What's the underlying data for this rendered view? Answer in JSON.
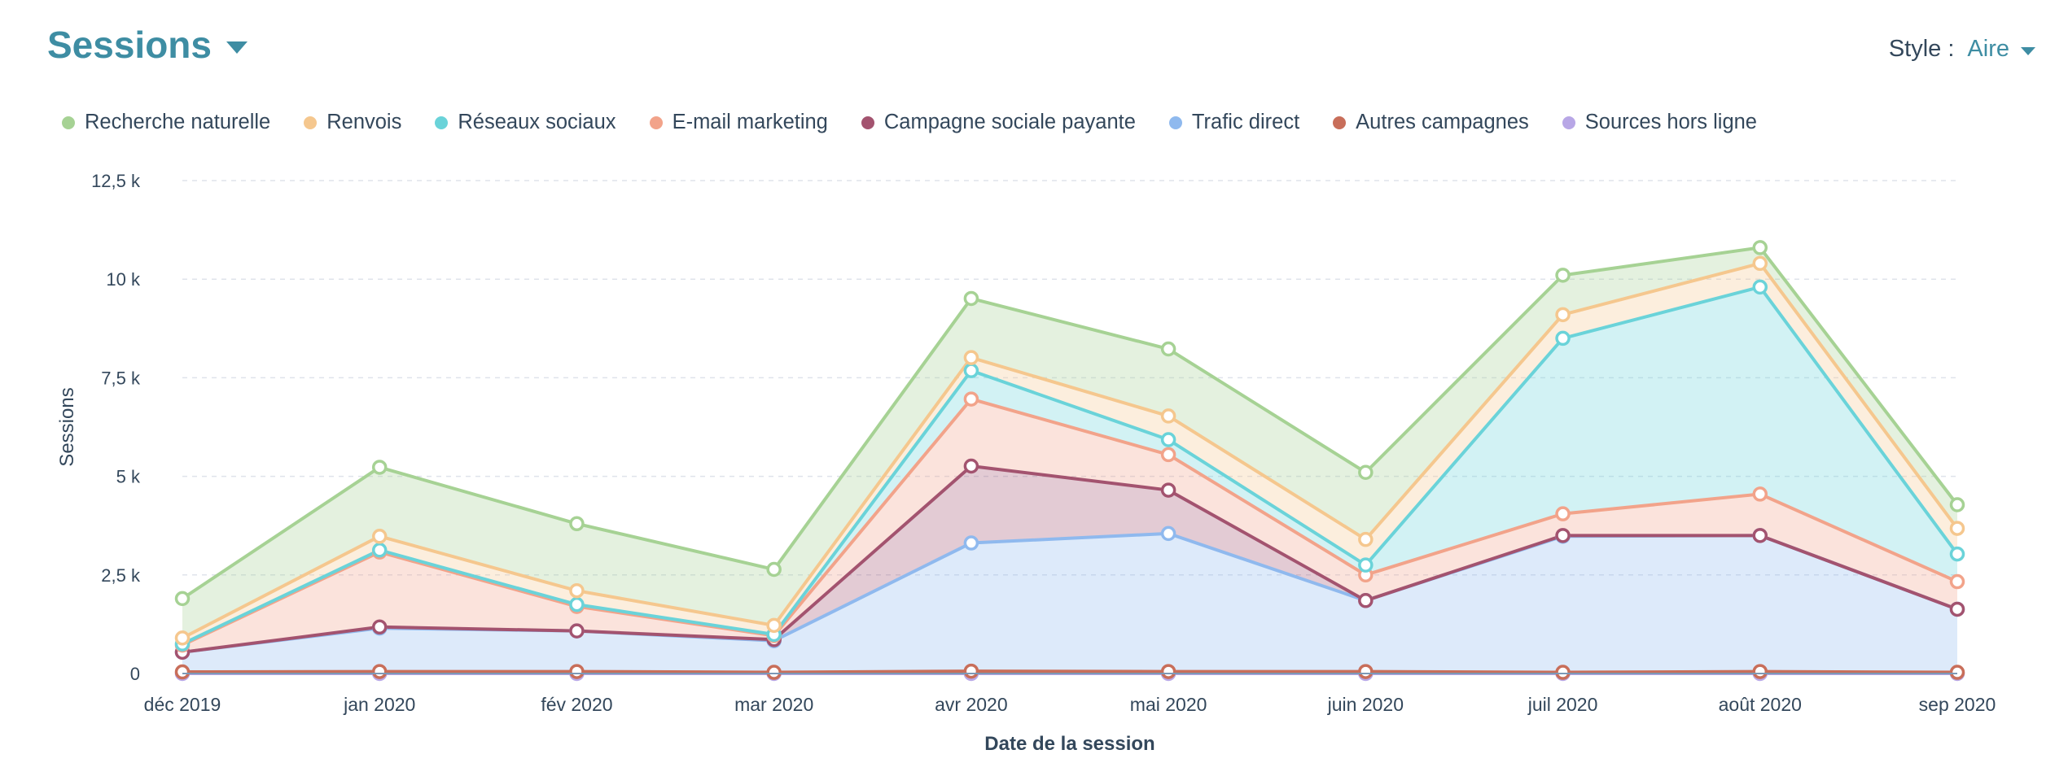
{
  "header": {
    "title": "Sessions"
  },
  "style_selector": {
    "label": "Style :",
    "value": "Aire"
  },
  "chart_data": {
    "type": "area",
    "stacked": true,
    "title": "Sessions",
    "xlabel": "Date de la session",
    "ylabel": "Sessions",
    "x": [
      "déc 2019",
      "jan 2020",
      "fév 2020",
      "mar 2020",
      "avr 2020",
      "mai 2020",
      "juin 2020",
      "juil 2020",
      "août 2020",
      "sep 2020"
    ],
    "y_ticks": [
      {
        "value": 0,
        "label": "0"
      },
      {
        "value": 2500,
        "label": "2,5 k"
      },
      {
        "value": 5000,
        "label": "5 k"
      },
      {
        "value": 7500,
        "label": "7,5 k"
      },
      {
        "value": 10000,
        "label": "10 k"
      },
      {
        "value": 12500,
        "label": "12,5 k"
      }
    ],
    "ylim": [
      0,
      12500
    ],
    "grid": true,
    "legend_position": "top-left",
    "series": [
      {
        "name": "Recherche naturelle",
        "color": "#a6d294",
        "values": [
          1000,
          1750,
          1700,
          1420,
          1500,
          1700,
          1700,
          1000,
          400,
          600
        ]
      },
      {
        "name": "Renvois",
        "color": "#f5c78e",
        "values": [
          150,
          350,
          350,
          230,
          330,
          600,
          650,
          600,
          600,
          650
        ]
      },
      {
        "name": "Réseaux sociaux",
        "color": "#6ad3d9",
        "values": [
          30,
          50,
          50,
          30,
          720,
          380,
          250,
          4450,
          5250,
          700
        ]
      },
      {
        "name": "E-mail marketing",
        "color": "#f2a38a",
        "values": [
          180,
          1900,
          620,
          100,
          1700,
          900,
          650,
          550,
          1050,
          700
        ]
      },
      {
        "name": "Campagne sociale payante",
        "color": "#a3536f",
        "values": [
          0,
          30,
          0,
          30,
          1950,
          1100,
          0,
          20,
          0,
          0
        ]
      },
      {
        "name": "Trafic direct",
        "color": "#8fb9ee",
        "values": [
          500,
          1100,
          1030,
          800,
          3250,
          3500,
          1800,
          3450,
          3450,
          1600
        ]
      },
      {
        "name": "Autres campagnes",
        "color": "#c86e5a",
        "values": [
          40,
          50,
          50,
          30,
          60,
          50,
          50,
          30,
          50,
          30
        ]
      },
      {
        "name": "Sources hors ligne",
        "color": "#b8a7e6",
        "values": [
          0,
          0,
          0,
          0,
          0,
          0,
          0,
          0,
          0,
          0
        ]
      }
    ]
  }
}
